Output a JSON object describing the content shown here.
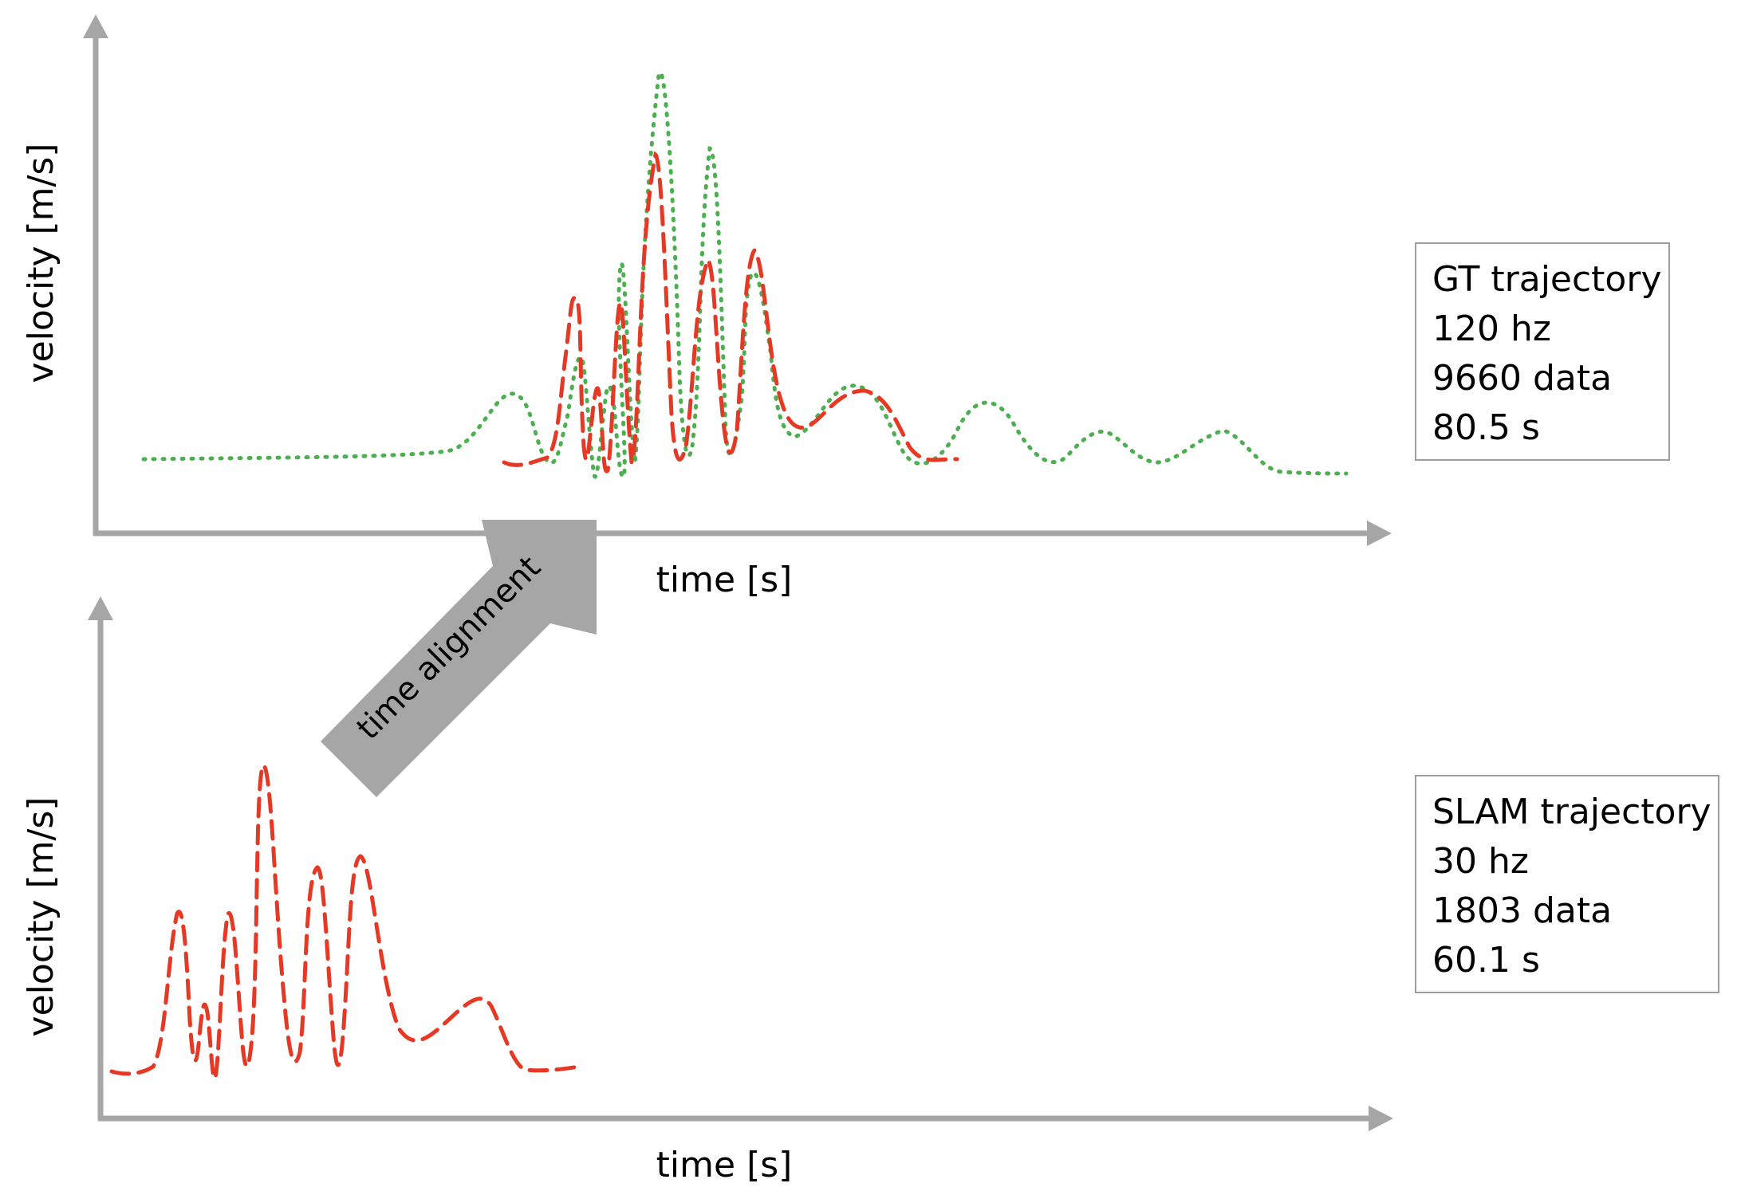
{
  "colors": {
    "axis": "#a6a6a6",
    "gt": "#4caf50",
    "slam": "#e53925",
    "arrow": "#a6a6a6"
  },
  "top_panel": {
    "ylabel": "velocity [m/s]",
    "xlabel": "time [s]",
    "info": {
      "title": "GT trajectory",
      "rate": "120 hz",
      "count": "9660 data",
      "duration": "80.5 s"
    }
  },
  "bottom_panel": {
    "ylabel": "velocity [m/s]",
    "xlabel": "time [s]",
    "info": {
      "title": "SLAM trajectory",
      "rate": "30 hz",
      "count": "1803 data",
      "duration": "60.1 s"
    }
  },
  "arrow": {
    "label": "time alignment"
  }
}
